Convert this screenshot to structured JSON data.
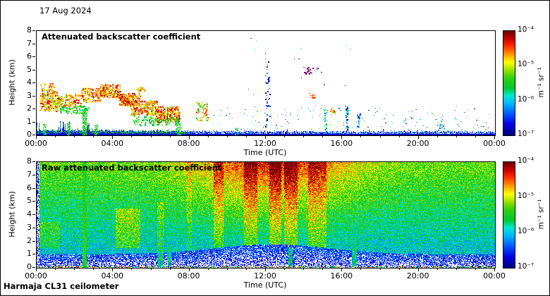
{
  "window": {
    "date": "17 Aug 2024",
    "footer": "Harmaja CL31 ceilometer"
  },
  "colorbar": {
    "tick_labels": [
      "10⁻⁴",
      "10⁻⁵",
      "10⁻⁶",
      "10⁻⁷"
    ],
    "unit_label": "m⁻¹ sr⁻¹",
    "scale": "log",
    "range": [
      "1e-7",
      "1e-4"
    ],
    "colormap": "jet-like",
    "stops": [
      [
        0.0,
        "#00007f"
      ],
      [
        0.1,
        "#0000e0"
      ],
      [
        0.2,
        "#0055ff"
      ],
      [
        0.3,
        "#00b4ff"
      ],
      [
        0.38,
        "#00e8d0"
      ],
      [
        0.45,
        "#00c830"
      ],
      [
        0.55,
        "#30d010"
      ],
      [
        0.62,
        "#90e000"
      ],
      [
        0.7,
        "#ffff00"
      ],
      [
        0.78,
        "#ff9500"
      ],
      [
        0.86,
        "#ff2a00"
      ],
      [
        0.93,
        "#c40000"
      ],
      [
        1.0,
        "#6e0000"
      ]
    ]
  },
  "chart_data": [
    {
      "type": "heatmap",
      "panel": "top",
      "title": "Attenuated backscatter coefficient",
      "xlabel": "Time (UTC)",
      "ylabel": "Height (km)",
      "x_unit": "hours UTC",
      "x_range": [
        0,
        24
      ],
      "y_unit": "km",
      "y_range": [
        0,
        8
      ],
      "xtick_labels": [
        "00:00",
        "04:00",
        "08:00",
        "12:00",
        "16:00",
        "20:00",
        "00:00"
      ],
      "ytick_labels": [
        "0",
        "1",
        "2",
        "3",
        "4",
        "5",
        "6",
        "7",
        "8"
      ],
      "value_unit": "m⁻¹ sr⁻¹",
      "value_mapping": "normalized v: 0 -> 1e-7, 1 -> 1e-4 (log scale); white = below threshold",
      "render": {
        "seed": 7,
        "background": "#ffffff",
        "boundary_layer": {
          "early_top_km": 0.36,
          "late_top_km": 0.27,
          "jitter_km": 0.16,
          "green_specks_until_h": 8
        },
        "column_streaks": [
          {
            "t": [
              2.4,
              2.62
            ],
            "h": [
              0,
              1.95
            ],
            "v": [
              0.4,
              0.6
            ],
            "density": 0.75
          },
          {
            "t": [
              1.6,
              1.75
            ],
            "h": [
              0,
              0.95
            ],
            "v": [
              0.4,
              0.6
            ],
            "density": 0.6
          },
          {
            "t": [
              3.05,
              3.2
            ],
            "h": [
              0,
              0.8
            ],
            "v": [
              0.4,
              0.6
            ],
            "density": 0.6
          },
          {
            "t": [
              0.35,
              0.5
            ],
            "h": [
              0,
              0.85
            ],
            "v": [
              0.4,
              0.6
            ],
            "density": 0.5
          },
          {
            "t": [
              7.3,
              7.55
            ],
            "h": [
              0,
              1.2
            ],
            "v": [
              0.38,
              0.58
            ],
            "density": 0.5
          },
          {
            "t": [
              10.4,
              10.55
            ],
            "h": [
              0,
              0.55
            ],
            "v": [
              0.35,
              0.55
            ],
            "density": 0.5
          }
        ],
        "clusters": [
          {
            "t": [
              0.15,
              1.1
            ],
            "h": [
              1.9,
              3.4
            ],
            "n": 300,
            "v": [
              0.58,
              0.95
            ]
          },
          {
            "t": [
              0.2,
              0.9
            ],
            "h": [
              3.4,
              4.0
            ],
            "n": 50,
            "v": [
              0.6,
              0.9
            ]
          },
          {
            "t": [
              1.1,
              2.3
            ],
            "h": [
              2.2,
              3.2
            ],
            "n": 190,
            "v": [
              0.55,
              0.93
            ]
          },
          {
            "t": [
              1.2,
              2.7
            ],
            "h": [
              1.7,
              2.3
            ],
            "n": 110,
            "v": [
              0.4,
              0.62
            ]
          },
          {
            "t": [
              2.3,
              3.3
            ],
            "h": [
              2.6,
              3.7
            ],
            "n": 210,
            "v": [
              0.6,
              0.95
            ]
          },
          {
            "t": [
              3.3,
              4.4
            ],
            "h": [
              2.9,
              3.95
            ],
            "n": 330,
            "v": [
              0.63,
              0.97
            ]
          },
          {
            "t": [
              4.3,
              5.4
            ],
            "h": [
              2.3,
              3.25
            ],
            "n": 300,
            "v": [
              0.63,
              0.97
            ]
          },
          {
            "t": [
              4.9,
              6.3
            ],
            "h": [
              1.6,
              2.7
            ],
            "n": 380,
            "v": [
              0.6,
              0.95
            ]
          },
          {
            "t": [
              6.2,
              7.45
            ],
            "h": [
              1.0,
              2.25
            ],
            "n": 430,
            "v": [
              0.62,
              0.97
            ]
          },
          {
            "t": [
              5.0,
              7.4
            ],
            "h": [
              0.8,
              1.5
            ],
            "n": 130,
            "v": [
              0.4,
              0.6
            ]
          },
          {
            "t": [
              5.2,
              5.7
            ],
            "h": [
              3.3,
              3.75
            ],
            "n": 35,
            "v": [
              0.62,
              0.88
            ]
          },
          {
            "t": [
              8.3,
              8.95
            ],
            "h": [
              1.1,
              2.6
            ],
            "n": 80,
            "v": [
              0.45,
              0.9
            ]
          },
          {
            "t": [
              13.95,
              14.75
            ],
            "h": [
              4.75,
              5.3
            ],
            "n": 26,
            "palette": [
              "#7a0080",
              "#92004e",
              "#640060"
            ]
          },
          {
            "t": [
              14.3,
              14.55
            ],
            "h": [
              2.85,
              3.15
            ],
            "n": 14,
            "v": [
              0.78,
              0.95
            ]
          },
          {
            "t": [
              15.35,
              15.6
            ],
            "h": [
              1.75,
              2.15
            ],
            "n": 12,
            "v": [
              0.5,
              0.88
            ]
          },
          {
            "t": [
              11.95,
              12.2
            ],
            "h": [
              0.6,
              6.8
            ],
            "n": 45,
            "v": [
              0.0,
              0.25
            ]
          },
          {
            "t": [
              16.15,
              16.3
            ],
            "h": [
              0.45,
              2.3
            ],
            "n": 55,
            "v": [
              0.08,
              0.55
            ]
          },
          {
            "t": [
              16.75,
              16.9
            ],
            "h": [
              0.45,
              1.7
            ],
            "n": 30,
            "v": [
              0.06,
              0.4
            ]
          },
          {
            "t": [
              15.0,
              15.15
            ],
            "h": [
              0.4,
              2.0
            ],
            "n": 26,
            "v": [
              0.1,
              0.5
            ]
          },
          {
            "t": [
              21.0,
              21.35
            ],
            "h": [
              0.55,
              1.25
            ],
            "n": 14,
            "v": [
              0.12,
              0.45
            ]
          }
        ],
        "scatter": [
          {
            "n": 130,
            "t": [
              9.0,
              23.9
            ],
            "h": [
              0.35,
              2.35
            ],
            "v": [
              0.04,
              0.58
            ]
          },
          {
            "n": 16,
            "t": [
              11.0,
              16.5
            ],
            "h": [
              3.0,
              7.5
            ],
            "v": [
              0.0,
              0.3
            ]
          },
          {
            "n": 25,
            "t": [
              17.0,
              23.9
            ],
            "h": [
              0.35,
              1.6
            ],
            "v": [
              0.05,
              0.5
            ]
          }
        ]
      }
    },
    {
      "type": "heatmap",
      "panel": "bottom",
      "title": "Raw attenuated backscatter coefficient",
      "xlabel": "Time (UTC)",
      "ylabel": "Height (km)",
      "x_unit": "hours UTC",
      "x_range": [
        0,
        24
      ],
      "y_unit": "km",
      "y_range": [
        0,
        8
      ],
      "xtick_labels": [
        "00:00",
        "04:00",
        "08:00",
        "12:00",
        "16:00",
        "20:00",
        "00:00"
      ],
      "ytick_labels": [
        "0",
        "1",
        "2",
        "3",
        "4",
        "5",
        "6",
        "7",
        "8"
      ],
      "value_unit": "m⁻¹ sr⁻¹",
      "value_mapping": "normalized v: 0 -> 1e-7, 1 -> 1e-4 (log scale); white = below threshold",
      "render": {
        "seed": 1234,
        "surface_band_km": 0.13,
        "edge_gap_t": 0.12,
        "noise": {
          "base": 0.3,
          "height_lin": 0.28,
          "solar_gain": 0.34,
          "solar_center_h": 12.3,
          "solar_width_h": 4.2,
          "spread": 0.28
        },
        "low_region": {
          "top_km": 1.05,
          "solar_extra_km": 0.75,
          "mean_v": 0.17,
          "spread": 0.33,
          "cut": 0.045
        },
        "green_column": {
          "t": [
            2.38,
            2.6
          ],
          "v": [
            0.42,
            0.6
          ]
        },
        "boost_regions": [
          {
            "t": [
              9.25,
              9.75
            ],
            "h": [
              1.2,
              8
            ],
            "dv": 0.15
          },
          {
            "t": [
              10.85,
              11.55
            ],
            "h": [
              1.2,
              8
            ],
            "dv": 0.15
          },
          {
            "t": [
              12.15,
              12.8
            ],
            "h": [
              1.2,
              8
            ],
            "dv": 0.17
          },
          {
            "t": [
              12.95,
              13.65
            ],
            "h": [
              1.2,
              8
            ],
            "dv": 0.17
          },
          {
            "t": [
              14.2,
              15.15
            ],
            "h": [
              1.2,
              8
            ],
            "dv": 0.15
          },
          {
            "t": [
              4.1,
              5.4
            ],
            "h": [
              1.5,
              4.5
            ],
            "dv": 0.16
          },
          {
            "t": [
              0.1,
              1.2
            ],
            "h": [
              1.5,
              3.5
            ],
            "dv": 0.1
          },
          {
            "t": [
              7.85,
              8.1
            ],
            "h": [
              0.5,
              8
            ],
            "dv": 0.09
          },
          {
            "t": [
              6.3,
              6.65
            ],
            "h": [
              1.0,
              5.0
            ],
            "dv": 0.1
          }
        ],
        "ground_streaks": [
          {
            "t": [
              6.35,
              6.6
            ],
            "h": [
              0,
              2.2
            ]
          },
          {
            "t": [
              6.85,
              7.05
            ],
            "h": [
              0,
              1.8
            ]
          },
          {
            "t": [
              13.15,
              13.4
            ],
            "h": [
              0,
              1.5
            ]
          },
          {
            "t": [
              16.5,
              16.75
            ],
            "h": [
              0,
              1.5
            ]
          }
        ]
      }
    }
  ]
}
